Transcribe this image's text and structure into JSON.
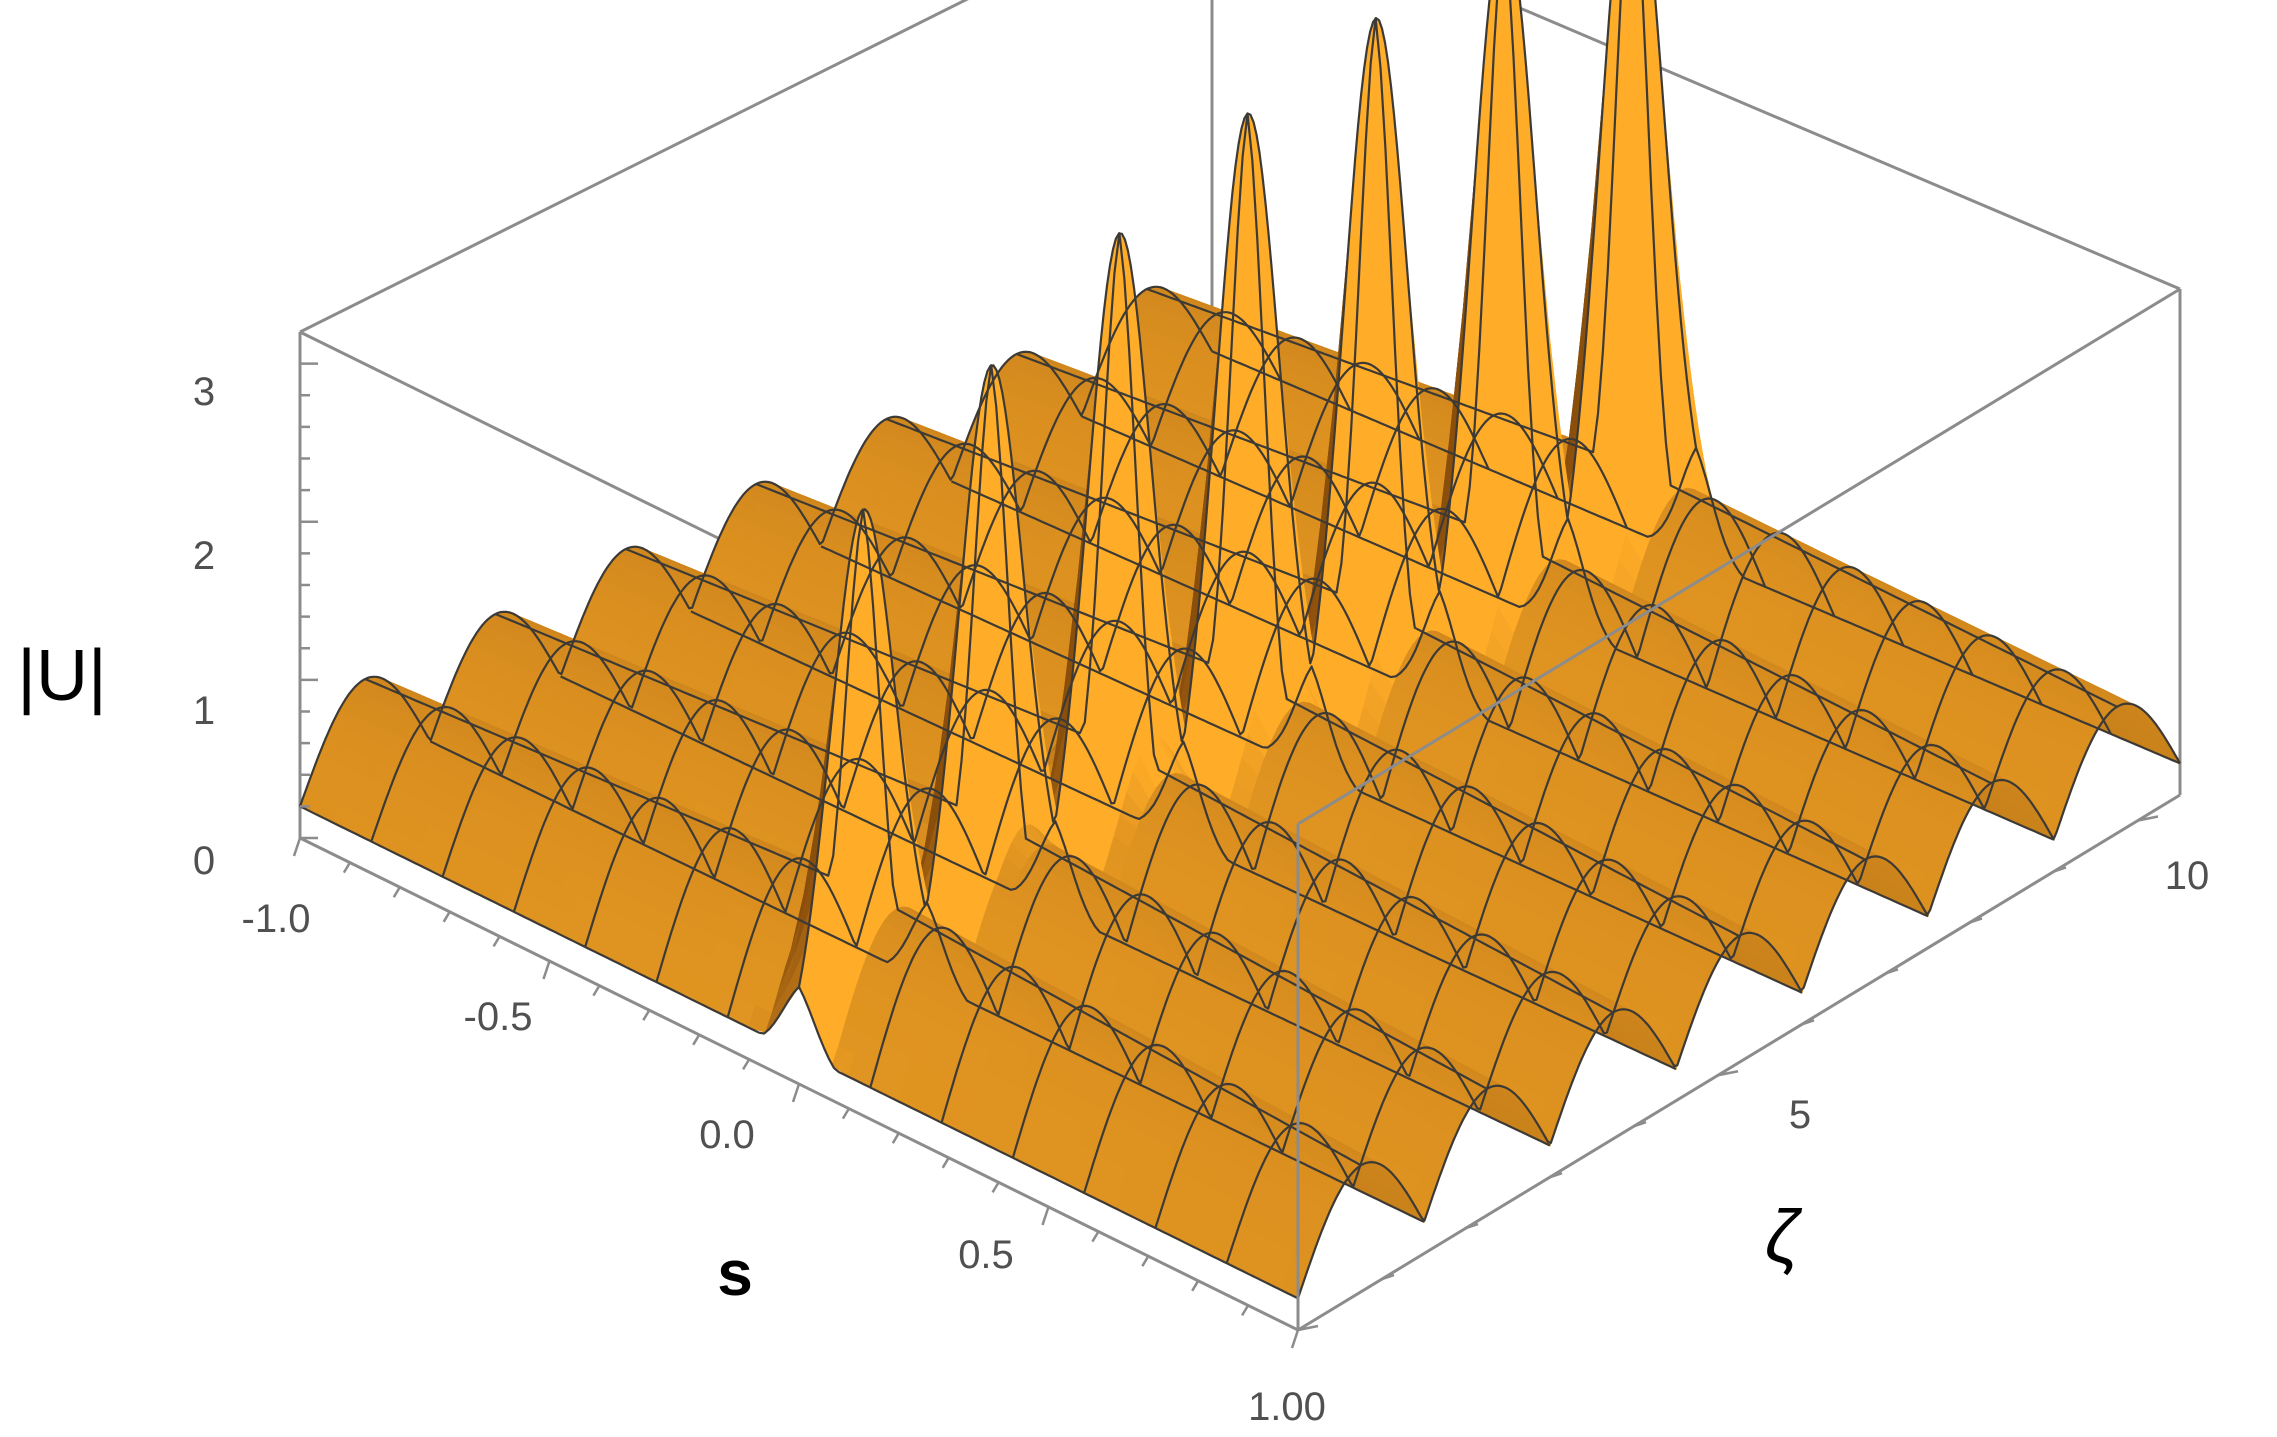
{
  "chart_data": {
    "type": "surface3d",
    "title": "",
    "xlabel": "s",
    "ylabel": "ζ",
    "zlabel": "|U|",
    "xlim": [
      -1.0,
      1.0
    ],
    "ylim": [
      0,
      10.5
    ],
    "zlim": [
      0,
      3.2
    ],
    "x_ticks": [
      "-1.0",
      "-0.5",
      "0.0",
      "0.5",
      "1.00"
    ],
    "x_tick_values": [
      -1.0,
      -0.5,
      0.0,
      0.5,
      1.0
    ],
    "y_ticks": [
      "5",
      "10"
    ],
    "y_tick_values": [
      5,
      10
    ],
    "z_ticks": [
      "0",
      "1",
      "2",
      "3"
    ],
    "z_tick_values": [
      0,
      1,
      2,
      3
    ],
    "peaks": [
      {
        "zeta": 0.75,
        "s": 0.0,
        "height": 2.2
      },
      {
        "zeta": 2.25,
        "s": 0.0,
        "height": 2.5
      },
      {
        "zeta": 3.75,
        "s": 0.0,
        "height": 2.75
      },
      {
        "zeta": 5.25,
        "s": 0.0,
        "height": 2.95
      },
      {
        "zeta": 6.75,
        "s": 0.0,
        "height": 3.05
      },
      {
        "zeta": 8.25,
        "s": 0.0,
        "height": 3.15
      },
      {
        "zeta": 9.75,
        "s": 0.0,
        "height": 3.2
      }
    ],
    "background_profile": {
      "periodic_in_zeta": 1.5,
      "max": 1.0,
      "min": 0.2
    },
    "colors": {
      "surface_light": "#ffad2a",
      "surface_mid": "#d07d10",
      "surface_dark": "#6a3806",
      "mesh": "#3d3a35",
      "box": "#8c8c8c"
    }
  }
}
